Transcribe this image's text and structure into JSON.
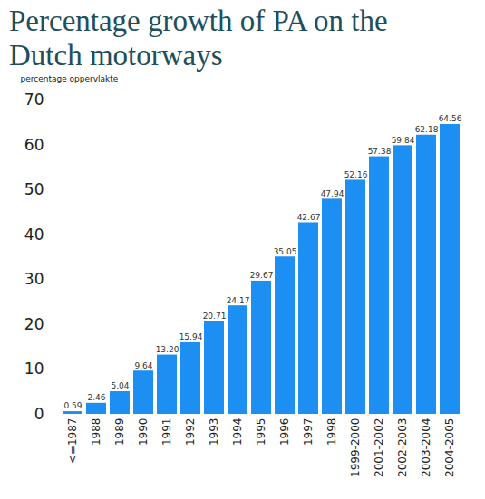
{
  "chart_data": {
    "type": "bar",
    "title": "Percentage growth of PA on the Dutch motorways",
    "y_label": "percentage oppervlakte",
    "categories": [
      "<=1987",
      "1988",
      "1989",
      "1990",
      "1991",
      "1992",
      "1993",
      "1994",
      "1995",
      "1996",
      "1997",
      "1998",
      "1999-2000",
      "2001-2002",
      "2002-2003",
      "2003-2004",
      "2004-2005"
    ],
    "values": [
      0.59,
      2.46,
      5.04,
      9.64,
      13.2,
      15.94,
      20.71,
      24.17,
      29.67,
      35.05,
      42.67,
      47.94,
      52.16,
      57.38,
      59.84,
      62.18,
      64.56
    ],
    "value_labels": [
      "0.59",
      "2.46",
      "5.04",
      "9.64",
      "13.20",
      "15.94",
      "20.71",
      "24.17",
      "29.67",
      "35.05",
      "42.67",
      "47.94",
      "52.16",
      "57.38",
      "59.84",
      "62.18",
      "64.56"
    ],
    "color": "#1e8ff2",
    "ylim": [
      0,
      70
    ],
    "yticks": [
      0,
      10,
      20,
      30,
      40,
      50,
      60,
      70
    ],
    "grid": false,
    "data_labels": true
  }
}
